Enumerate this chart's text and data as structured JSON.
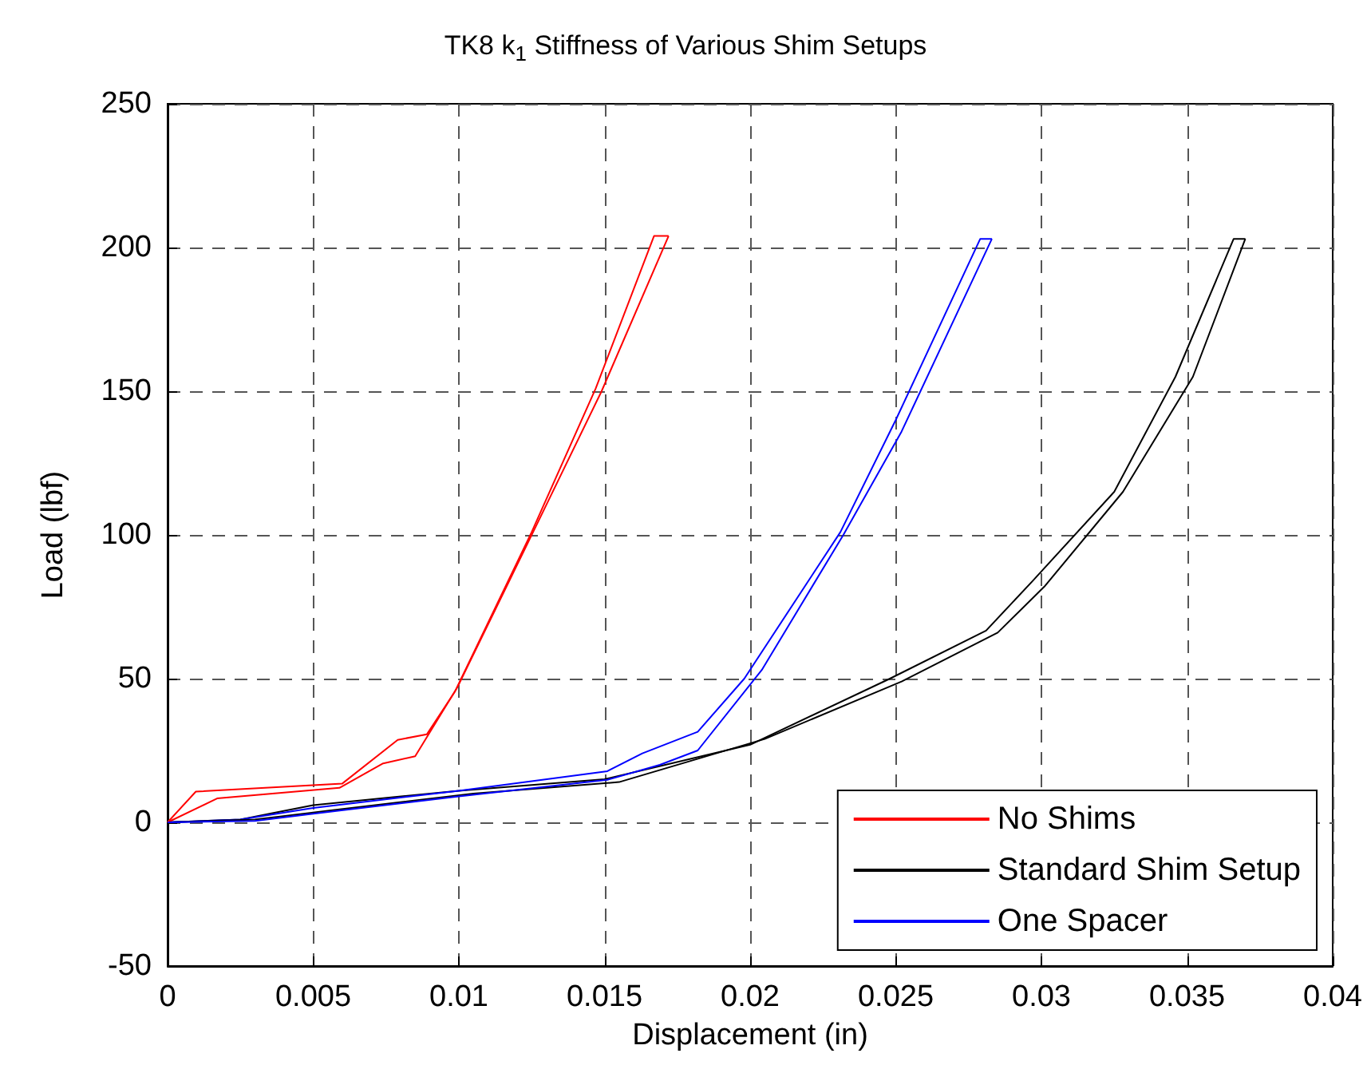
{
  "chart_data": {
    "type": "line",
    "title": "TK8 k$_{1}$ Stiffness of Various Shim Setups",
    "xlabel": "Displacement (in)",
    "ylabel": "Load (lbf)",
    "xlim": [
      0,
      0.04
    ],
    "xticks": [
      0,
      0.005,
      0.01,
      0.015,
      0.02,
      0.025,
      0.03,
      0.035,
      0.04
    ],
    "ylim": [
      -50,
      250
    ],
    "yticks": [
      -50,
      0,
      50,
      100,
      150,
      200,
      250
    ],
    "grid": true,
    "legend": "bottom right",
    "marker": "none",
    "line_style": "solid",
    "series": [
      {
        "name": "No Shims",
        "color": "#ff0000",
        "x": [
          0,
          0.00097,
          0.006,
          0.0079,
          0.0089,
          0.00986,
          0.0125,
          0.0147,
          0.0167,
          0.0172
        ],
        "values": [
          0,
          10.7,
          13.5,
          28.7,
          30.6,
          45.4,
          101,
          151,
          204,
          204
        ]
      },
      {
        "name": "Standard Shim Setup",
        "color": "#000000",
        "x": [
          0,
          0.0025,
          0.005,
          0.01,
          0.015,
          0.02,
          0.0248,
          0.0281,
          0.0297,
          0.0325,
          0.0346,
          0.0366,
          0.037
        ],
        "values": [
          0,
          1,
          6,
          11,
          15,
          27,
          50,
          66.7,
          84,
          115,
          155,
          203,
          203
        ]
      },
      {
        "name": "One Spacer",
        "color": "#0000ff",
        "x": [
          0,
          0.0025,
          0.005,
          0.01,
          0.0151,
          0.0163,
          0.0182,
          0.0198,
          0.0231,
          0.025,
          0.0279,
          0.0283
        ],
        "values": [
          0,
          1,
          5,
          11,
          17.8,
          24,
          31.5,
          50,
          101,
          140,
          203,
          203
        ]
      },
      {
        "color": "#ff0000",
        "x": [
          0,
          0.0017,
          0.0059,
          0.0074,
          0.0085,
          0.00995,
          0.01255,
          0.0149,
          0.0172
        ],
        "values": [
          0,
          8.3,
          12,
          20.5,
          23,
          47,
          101,
          150,
          204
        ]
      },
      {
        "color": "#000000",
        "x": [
          0,
          0.003,
          0.0055,
          0.0105,
          0.0155,
          0.0205,
          0.0252,
          0.0285,
          0.0301,
          0.0328,
          0.0352,
          0.037
        ],
        "values": [
          0,
          1,
          4,
          10,
          14,
          29,
          49,
          66,
          82,
          115,
          155,
          203
        ]
      },
      {
        "color": "#0000ff",
        "x": [
          0,
          0.003,
          0.005,
          0.01,
          0.0151,
          0.0169,
          0.0182,
          0.0204,
          0.0232,
          0.0252,
          0.0283
        ],
        "values": [
          0,
          0.5,
          3,
          9,
          14.8,
          20,
          25,
          53,
          100,
          136,
          203
        ]
      }
    ]
  }
}
